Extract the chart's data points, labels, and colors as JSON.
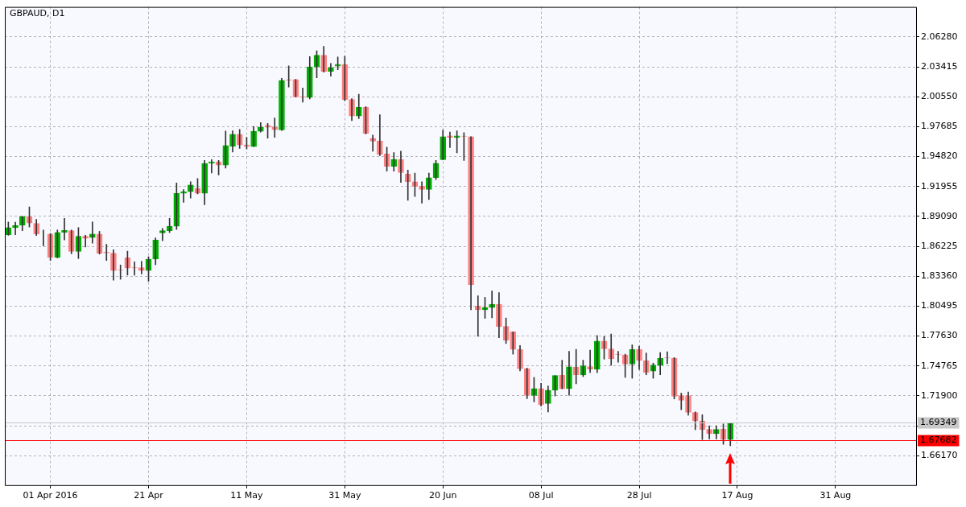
{
  "chart_data": {
    "type": "candlestick",
    "title": "GBPAUD, D1",
    "categories": [
      null,
      null,
      null,
      null,
      null,
      null,
      "01 Apr 2016",
      null,
      null,
      null,
      null,
      null,
      null,
      null,
      null,
      null,
      null,
      null,
      null,
      null,
      "21 Apr",
      null,
      null,
      null,
      null,
      null,
      null,
      null,
      null,
      null,
      null,
      null,
      null,
      null,
      "11 May",
      null,
      null,
      null,
      null,
      null,
      null,
      null,
      null,
      null,
      null,
      null,
      null,
      null,
      "31 May",
      null,
      null,
      null,
      null,
      null,
      null,
      null,
      null,
      null,
      null,
      null,
      null,
      null,
      "20 Jun",
      null,
      null,
      null,
      null,
      null,
      null,
      null,
      null,
      null,
      null,
      null,
      null,
      null,
      "08 Jul",
      null,
      null,
      null,
      null,
      null,
      null,
      null,
      null,
      null,
      null,
      null,
      null,
      null,
      "28 Jul",
      null,
      null,
      null,
      null,
      null,
      null,
      null,
      null,
      null,
      null,
      null,
      null,
      null,
      "17 Aug",
      null,
      null,
      null,
      null,
      null,
      null,
      null,
      null,
      null,
      null,
      null,
      null,
      null,
      "31 Aug",
      null,
      null,
      null,
      null,
      null,
      null,
      null,
      null,
      null,
      null,
      null
    ],
    "ohlc": [
      [
        1.8733,
        1.8855,
        1.8728,
        1.8802
      ],
      [
        1.8802,
        1.8853,
        1.8733,
        1.8822
      ],
      [
        1.8825,
        1.8911,
        1.8772,
        1.8906
      ],
      [
        1.8906,
        1.9,
        1.8807,
        1.8845
      ],
      [
        1.8843,
        1.8881,
        1.8726,
        1.8741
      ],
      [
        1.8741,
        1.8779,
        1.8627,
        1.8741
      ],
      [
        1.8741,
        1.8746,
        1.8487,
        1.8515
      ],
      [
        1.8515,
        1.8779,
        1.8512,
        1.8756
      ],
      [
        1.8756,
        1.8891,
        1.8683,
        1.8774
      ],
      [
        1.8772,
        1.8779,
        1.8551,
        1.8573
      ],
      [
        1.8573,
        1.8802,
        1.8505,
        1.8718
      ],
      [
        1.8718,
        1.8728,
        1.8617,
        1.8698
      ],
      [
        1.8706,
        1.8855,
        1.8652,
        1.8741
      ],
      [
        1.8741,
        1.8766,
        1.8548,
        1.8556
      ],
      [
        1.8566,
        1.8642,
        1.8487,
        1.8561
      ],
      [
        1.8558,
        1.8589,
        1.8299,
        1.8391
      ],
      [
        1.8398,
        1.8444,
        1.8307,
        1.8396
      ],
      [
        1.8512,
        1.8576,
        1.8347,
        1.8413
      ],
      [
        1.8418,
        1.8474,
        1.8347,
        1.8416
      ],
      [
        1.8418,
        1.8479,
        1.8358,
        1.8391
      ],
      [
        1.8391,
        1.8523,
        1.8289,
        1.85
      ],
      [
        1.85,
        1.8703,
        1.8446,
        1.8683
      ],
      [
        1.8751,
        1.8794,
        1.8675,
        1.8772
      ],
      [
        1.8772,
        1.8891,
        1.8754,
        1.8815
      ],
      [
        1.8815,
        1.9229,
        1.8784,
        1.913
      ],
      [
        1.913,
        1.9165,
        1.9043,
        1.9145
      ],
      [
        1.9145,
        1.9241,
        1.9084,
        1.9211
      ],
      [
        1.9175,
        1.9272,
        1.9125,
        1.913
      ],
      [
        1.913,
        1.9445,
        1.902,
        1.9417
      ],
      [
        1.9417,
        1.9452,
        1.9325,
        1.9432
      ],
      [
        1.9432,
        1.9445,
        1.9305,
        1.9401
      ],
      [
        1.9401,
        1.9727,
        1.9371,
        1.9587
      ],
      [
        1.9579,
        1.9729,
        1.9526,
        1.9696
      ],
      [
        1.9696,
        1.9742,
        1.9561,
        1.9592
      ],
      [
        1.9594,
        1.9666,
        1.9554,
        1.9579
      ],
      [
        1.9577,
        1.977,
        1.9577,
        1.9724
      ],
      [
        1.9724,
        1.9808,
        1.9716,
        1.9765
      ],
      [
        1.978,
        1.98,
        1.9658,
        1.9762
      ],
      [
        1.9765,
        1.9851,
        1.9666,
        1.9739
      ],
      [
        1.9737,
        2.0232,
        1.9732,
        2.0212
      ],
      [
        2.0217,
        2.0351,
        2.0148,
        2.0214
      ],
      [
        2.0219,
        2.0222,
        2.0054,
        2.0054
      ],
      [
        2.0054,
        2.0138,
        2.0003,
        2.0052
      ],
      [
        2.0047,
        2.044,
        2.0034,
        2.0341
      ],
      [
        2.0341,
        2.0496,
        2.0237,
        2.0453
      ],
      [
        2.0453,
        2.0537,
        2.029,
        2.0296
      ],
      [
        2.0298,
        2.0374,
        2.0252,
        2.0336
      ],
      [
        2.0349,
        2.0435,
        2.0313,
        2.0364
      ],
      [
        2.0364,
        2.0443,
        2.0016,
        2.0029
      ],
      [
        2.0029,
        2.0036,
        1.9826,
        1.9871
      ],
      [
        1.9871,
        2.008,
        1.9846,
        1.9953
      ],
      [
        1.9953,
        1.996,
        1.9699,
        1.9704
      ],
      [
        1.9658,
        1.9688,
        1.9534,
        1.963
      ],
      [
        1.9633,
        1.9882,
        1.949,
        1.9503
      ],
      [
        1.9506,
        1.9572,
        1.9343,
        1.9389
      ],
      [
        1.9389,
        1.9521,
        1.9343,
        1.9455
      ],
      [
        1.9455,
        1.9534,
        1.9234,
        1.9328
      ],
      [
        1.9315,
        1.9353,
        1.9064,
        1.9241
      ],
      [
        1.9241,
        1.9323,
        1.9099,
        1.9198
      ],
      [
        1.9198,
        1.9241,
        1.9036,
        1.9168
      ],
      [
        1.9168,
        1.9323,
        1.9071,
        1.928
      ],
      [
        1.928,
        1.9445,
        1.9262,
        1.9419
      ],
      [
        1.9452,
        1.9737,
        1.9452,
        1.9673
      ],
      [
        1.9681,
        1.9716,
        1.9567,
        1.9666
      ],
      [
        1.9666,
        1.9729,
        1.9518,
        1.9681
      ],
      [
        1.9678,
        1.9711,
        1.9445,
        1.9676
      ],
      [
        1.9673,
        1.9673,
        1.8015,
        1.8256
      ],
      [
        1.805,
        1.8149,
        1.7761,
        1.8015
      ],
      [
        1.8017,
        1.8134,
        1.7933,
        1.8037
      ],
      [
        1.8037,
        1.8195,
        1.7938,
        1.8068
      ],
      [
        1.8068,
        1.818,
        1.7748,
        1.7855
      ],
      [
        1.7855,
        1.7936,
        1.7692,
        1.7722
      ],
      [
        1.7804,
        1.7804,
        1.759,
        1.7636
      ],
      [
        1.7634,
        1.7672,
        1.743,
        1.7451
      ],
      [
        1.7451,
        1.7456,
        1.7164,
        1.7194
      ],
      [
        1.7194,
        1.7367,
        1.7133,
        1.726
      ],
      [
        1.726,
        1.7311,
        1.7093,
        1.7105
      ],
      [
        1.7118,
        1.7286,
        1.7037,
        1.7245
      ],
      [
        1.7245,
        1.7385,
        1.7189,
        1.7385
      ],
      [
        1.7387,
        1.7532,
        1.7258,
        1.7258
      ],
      [
        1.726,
        1.7616,
        1.7197,
        1.7469
      ],
      [
        1.7466,
        1.7636,
        1.7306,
        1.7392
      ],
      [
        1.739,
        1.7532,
        1.7375,
        1.7479
      ],
      [
        1.7471,
        1.7628,
        1.7413,
        1.7446
      ],
      [
        1.7446,
        1.7768,
        1.7413,
        1.7715
      ],
      [
        1.7715,
        1.7761,
        1.7542,
        1.7641
      ],
      [
        1.7641,
        1.7783,
        1.7484,
        1.7545
      ],
      [
        1.759,
        1.7616,
        1.7512,
        1.7588
      ],
      [
        1.7583,
        1.759,
        1.7367,
        1.7494
      ],
      [
        1.7494,
        1.7679,
        1.7359,
        1.7634
      ],
      [
        1.7634,
        1.7667,
        1.7443,
        1.7529
      ],
      [
        1.7529,
        1.7601,
        1.7392,
        1.7413
      ],
      [
        1.7428,
        1.7504,
        1.7359,
        1.7486
      ],
      [
        1.7486,
        1.7606,
        1.7392,
        1.7552
      ],
      [
        1.7555,
        1.7613,
        1.7499,
        1.7552
      ],
      [
        1.7552,
        1.7557,
        1.7161,
        1.7187
      ],
      [
        1.7194,
        1.7217,
        1.7057,
        1.7148
      ],
      [
        1.7194,
        1.7227,
        1.7006,
        1.7032
      ],
      [
        1.7032,
        1.7037,
        1.6867,
        1.695
      ],
      [
        1.695,
        1.7011,
        1.6773,
        1.6869
      ],
      [
        1.6869,
        1.6905,
        1.6778,
        1.6828
      ],
      [
        1.6828,
        1.6905,
        1.6778,
        1.6869
      ],
      [
        1.6874,
        1.6922,
        1.6727,
        1.6773
      ],
      [
        1.6773,
        1.693,
        1.6712,
        1.693
      ],
      null,
      null,
      null,
      null,
      null,
      null,
      null,
      null,
      null,
      null,
      null,
      null,
      null,
      null,
      null,
      null,
      null,
      null,
      null,
      null,
      null,
      null,
      null,
      null,
      null,
      null
    ],
    "colors": [
      "#00b000",
      "#00b000",
      "#00b000",
      "#ff8080",
      "#ff8080",
      "#00b000",
      "#ff8080",
      "#00b000",
      "#00b000",
      "#ff8080",
      "#00b000",
      "#ff8080",
      "#00b000",
      "#ff8080",
      "#ff8080",
      "#ff8080",
      "#ff8080",
      "#ff8080",
      "#ff8080",
      "#ff8080",
      "#00b000",
      "#00b000",
      "#00b000",
      "#00b000",
      "#00b000",
      "#00b000",
      "#00b000",
      "#ff8080",
      "#00b000",
      "#00b000",
      "#ff8080",
      "#00b000",
      "#00b000",
      "#ff8080",
      "#ff8080",
      "#00b000",
      "#00b000",
      "#ff8080",
      "#ff8080",
      "#00b000",
      "#ff8080",
      "#ff8080",
      "#ff8080",
      "#00b000",
      "#00b000",
      "#ff8080",
      "#00b000",
      "#00b000",
      "#ff8080",
      "#ff8080",
      "#00b000",
      "#ff8080",
      "#ff8080",
      "#ff8080",
      "#ff8080",
      "#00b000",
      "#ff8080",
      "#ff8080",
      "#ff8080",
      "#ff8080",
      "#00b000",
      "#00b000",
      "#00b000",
      "#ff8080",
      "#00b000",
      "#ff8080",
      "#ff8080",
      "#ff8080",
      "#00b000",
      "#00b000",
      "#ff8080",
      "#ff8080",
      "#ff8080",
      "#ff8080",
      "#ff8080",
      "#00b000",
      "#ff8080",
      "#00b000",
      "#00b000",
      "#ff8080",
      "#00b000",
      "#ff8080",
      "#00b000",
      "#ff8080",
      "#00b000",
      "#ff8080",
      "#ff8080",
      "#ff8080",
      "#ff8080",
      "#00b000",
      "#ff8080",
      "#ff8080",
      "#00b000",
      "#00b000",
      "#ff8080",
      "#ff8080",
      "#ff8080",
      "#ff8080",
      "#ff8080",
      "#ff8080",
      "#ff8080",
      "#00b000",
      "#ff8080",
      "#00b000",
      null,
      null,
      null,
      null,
      null,
      null,
      null,
      null,
      null,
      null,
      null,
      null,
      null,
      null,
      null,
      null,
      null,
      null,
      null,
      null,
      null,
      null,
      null,
      null,
      null,
      null
    ],
    "ylim": [
      1.6336,
      2.0915
    ],
    "yticks": [
      {
        "value": 1.6617,
        "label": "1.66170"
      },
      {
        "value": 1.69035,
        "label": null
      },
      {
        "value": 1.719,
        "label": "1.71900"
      },
      1.74765,
      {
        "value": 1.7763,
        "label": "1.77630"
      },
      1.80495,
      {
        "value": 1.8336,
        "label": "1.83360"
      },
      1.86225,
      {
        "value": 1.8909,
        "label": "1.89090"
      },
      1.91955,
      {
        "value": 1.9482,
        "label": "1.94820"
      },
      1.97685,
      {
        "value": 2.0055,
        "label": "2.00550"
      },
      2.03415,
      {
        "value": 2.0628,
        "label": "2.06280"
      }
    ],
    "ref_lines": [
      {
        "axis": "y",
        "value": 1.69349,
        "label": "1.69349",
        "color": "#c8c8c8"
      },
      {
        "axis": "y",
        "value": 1.67682,
        "label": "1.67682",
        "color": "#ff0000"
      }
    ],
    "grid": true
  }
}
